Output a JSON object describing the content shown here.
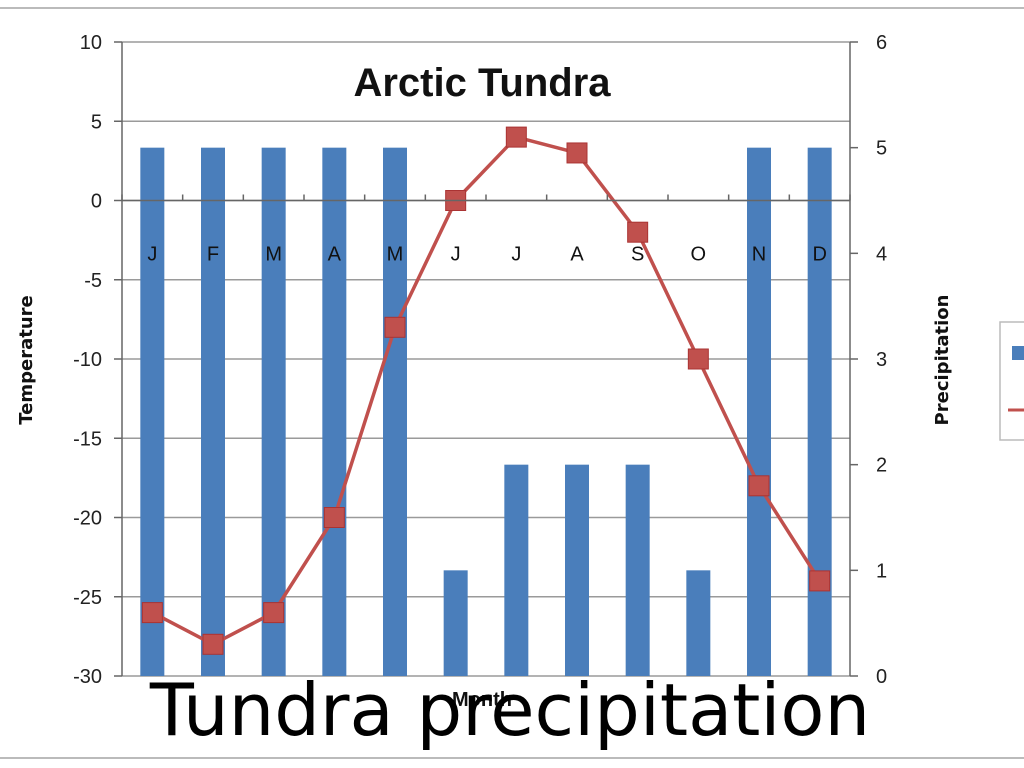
{
  "caption": "Tundra precipitation",
  "chart_data": {
    "type": "bar+line",
    "title": "Arctic Tundra",
    "xlabel": "Month",
    "ylabel_left": "Temperature",
    "ylabel_right": "Precipitation",
    "categories": [
      "J",
      "F",
      "M",
      "A",
      "M",
      "J",
      "J",
      "A",
      "S",
      "O",
      "N",
      "D"
    ],
    "y_left": {
      "min": -30,
      "max": 10,
      "ticks": [
        10,
        5,
        0,
        -5,
        -10,
        -15,
        -20,
        -25,
        -30
      ]
    },
    "y_right": {
      "min": 0,
      "max": 6,
      "ticks": [
        6,
        5,
        4,
        3,
        2,
        1,
        0
      ]
    },
    "grid": true,
    "legend": "right (partially cut off)",
    "series": [
      {
        "type": "bar",
        "axis": "right",
        "color": "#4a7ebb",
        "values": [
          5,
          5,
          5,
          5,
          5,
          1,
          2,
          2,
          2,
          1,
          5,
          5
        ]
      },
      {
        "type": "line",
        "axis": "left",
        "color": "#c0504d",
        "marker": "square",
        "values": [
          -26,
          -28,
          -26,
          -20,
          -8,
          0,
          4,
          3,
          -2,
          -10,
          -18,
          -24
        ]
      }
    ]
  }
}
